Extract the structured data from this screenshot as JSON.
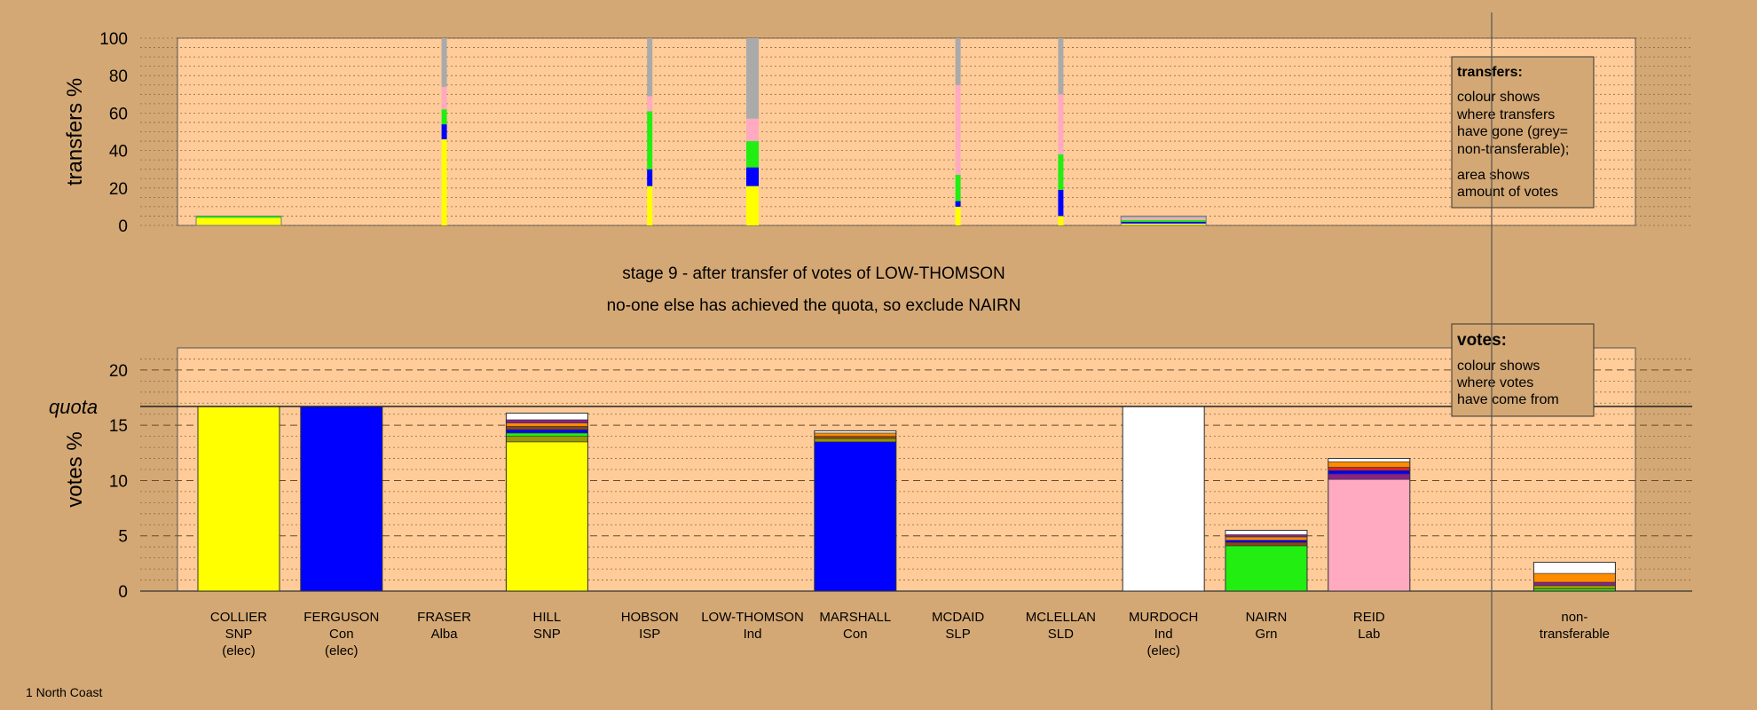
{
  "footer": {
    "region": "1 North Coast"
  },
  "stage_info": {
    "line1": "stage 9 - after transfer of votes of LOW-THOMSON",
    "line2": "no-one else has achieved the quota, so exclude NAIRN"
  },
  "legends": {
    "transfers": {
      "title": "transfers:",
      "lines": [
        "colour shows",
        "where transfers",
        "have gone (grey=",
        "non-transferable);",
        "area shows",
        "amount of votes"
      ]
    },
    "votes": {
      "title": "votes:",
      "lines": [
        "colour shows",
        "where votes",
        "have come from"
      ]
    }
  },
  "colors": {
    "SNP": "#ffff00",
    "Con": "#0000ff",
    "Grn": "#22ee11",
    "Lab": "#ffaac0",
    "Ind": "#ffffff",
    "Orange": "#ff8c00",
    "Purple": "#882288",
    "Brown": "#8b4513",
    "Olive": "#999900",
    "Red": "#dd2222",
    "NonTrans": "#aaaaaa",
    "Background": "#d4a874",
    "PlotFill": "#ffcc99"
  },
  "chart_data": [
    {
      "type": "bar",
      "name": "transfers",
      "ylabel": "transfers %",
      "ylim": [
        0,
        100
      ],
      "yticks": [
        0,
        20,
        40,
        60,
        80,
        100
      ],
      "columns": [
        {
          "candidate": "COLLIER",
          "segments": [
            {
              "color": "SNP",
              "value": 4
            },
            {
              "color": "Grn",
              "value": 1
            }
          ],
          "wide": true
        },
        {
          "candidate": "FRASER",
          "segments": [
            {
              "color": "SNP",
              "value": 46
            },
            {
              "color": "Con",
              "value": 8
            },
            {
              "color": "Grn",
              "value": 8
            },
            {
              "color": "Lab",
              "value": 12
            },
            {
              "color": "NonTrans",
              "value": 26
            }
          ]
        },
        {
          "candidate": "HOBSON",
          "segments": [
            {
              "color": "SNP",
              "value": 21
            },
            {
              "color": "Con",
              "value": 9
            },
            {
              "color": "Grn",
              "value": 31
            },
            {
              "color": "Lab",
              "value": 8
            },
            {
              "color": "NonTrans",
              "value": 31
            }
          ]
        },
        {
          "candidate": "LOW-THOMSON",
          "segments": [
            {
              "color": "SNP",
              "value": 21
            },
            {
              "color": "Con",
              "value": 10
            },
            {
              "color": "Grn",
              "value": 14
            },
            {
              "color": "Lab",
              "value": 12
            },
            {
              "color": "NonTrans",
              "value": 43
            }
          ]
        },
        {
          "candidate": "MCDAID",
          "segments": [
            {
              "color": "SNP",
              "value": 10
            },
            {
              "color": "Con",
              "value": 3
            },
            {
              "color": "Grn",
              "value": 14
            },
            {
              "color": "Lab",
              "value": 48
            },
            {
              "color": "NonTrans",
              "value": 25
            }
          ]
        },
        {
          "candidate": "MCLELLAN",
          "segments": [
            {
              "color": "SNP",
              "value": 5
            },
            {
              "color": "Con",
              "value": 14
            },
            {
              "color": "Grn",
              "value": 19
            },
            {
              "color": "Lab",
              "value": 32
            },
            {
              "color": "NonTrans",
              "value": 30
            }
          ]
        },
        {
          "candidate": "MURDOCH",
          "segments": [
            {
              "color": "SNP",
              "value": 1
            },
            {
              "color": "Con",
              "value": 1
            },
            {
              "color": "Grn",
              "value": 1
            },
            {
              "color": "Lab",
              "value": 1
            },
            {
              "color": "NonTrans",
              "value": 1
            }
          ],
          "wide": true
        }
      ]
    },
    {
      "type": "bar",
      "name": "votes",
      "ylabel": "votes %",
      "ylim": [
        0,
        22
      ],
      "yticks": [
        0,
        5,
        10,
        15,
        20
      ],
      "quota": 16.7,
      "quota_label": "quota",
      "categories": [
        "COLLIER",
        "FERGUSON",
        "FRASER",
        "HILL",
        "HOBSON",
        "LOW-THOMSON",
        "MARSHALL",
        "MCDAID",
        "MCLELLAN",
        "MURDOCH",
        "NAIRN",
        "REID",
        "",
        "non-"
      ],
      "category_labels": [
        {
          "name": "COLLIER",
          "party": "SNP",
          "note": "(elec)"
        },
        {
          "name": "FERGUSON",
          "party": "Con",
          "note": "(elec)"
        },
        {
          "name": "FRASER",
          "party": "Alba",
          "note": ""
        },
        {
          "name": "HILL",
          "party": "SNP",
          "note": ""
        },
        {
          "name": "HOBSON",
          "party": "ISP",
          "note": ""
        },
        {
          "name": "LOW-THOMSON",
          "party": "Ind",
          "note": ""
        },
        {
          "name": "MARSHALL",
          "party": "Con",
          "note": ""
        },
        {
          "name": "MCDAID",
          "party": "SLP",
          "note": ""
        },
        {
          "name": "MCLELLAN",
          "party": "SLD",
          "note": ""
        },
        {
          "name": "MURDOCH",
          "party": "Ind",
          "note": "(elec)"
        },
        {
          "name": "NAIRN",
          "party": "Grn",
          "note": ""
        },
        {
          "name": "REID",
          "party": "Lab",
          "note": ""
        },
        {
          "name": "",
          "party": "",
          "note": ""
        },
        {
          "name": "non-",
          "party": "transferable",
          "note": ""
        }
      ],
      "stacks": [
        [
          {
            "color": "SNP",
            "value": 16.7
          }
        ],
        [
          {
            "color": "Con",
            "value": 16.7
          }
        ],
        [],
        [
          {
            "color": "SNP",
            "value": 13.5
          },
          {
            "color": "Olive",
            "value": 0.5
          },
          {
            "color": "Grn",
            "value": 0.3
          },
          {
            "color": "Con",
            "value": 0.3
          },
          {
            "color": "Brown",
            "value": 0.3
          },
          {
            "color": "Orange",
            "value": 0.3
          },
          {
            "color": "Purple",
            "value": 0.3
          },
          {
            "color": "Ind",
            "value": 0.6
          }
        ],
        [],
        [],
        [
          {
            "color": "Con",
            "value": 13.5
          },
          {
            "color": "Olive",
            "value": 0.3
          },
          {
            "color": "Brown",
            "value": 0.2
          },
          {
            "color": "Orange",
            "value": 0.3
          },
          {
            "color": "Ind",
            "value": 0.2
          }
        ],
        [],
        [],
        [
          {
            "color": "Ind",
            "value": 16.7
          }
        ],
        [
          {
            "color": "Grn",
            "value": 4.1
          },
          {
            "color": "Brown",
            "value": 0.3
          },
          {
            "color": "Con",
            "value": 0.2
          },
          {
            "color": "Orange",
            "value": 0.3
          },
          {
            "color": "Purple",
            "value": 0.2
          },
          {
            "color": "Ind",
            "value": 0.4
          }
        ],
        [
          {
            "color": "Lab",
            "value": 10.1
          },
          {
            "color": "Purple",
            "value": 0.5
          },
          {
            "color": "Con",
            "value": 0.3
          },
          {
            "color": "Red",
            "value": 0.3
          },
          {
            "color": "Orange",
            "value": 0.5
          },
          {
            "color": "Ind",
            "value": 0.3
          }
        ],
        [],
        [
          {
            "color": "Grn",
            "value": 0.2
          },
          {
            "color": "Olive",
            "value": 0.3
          },
          {
            "color": "Purple",
            "value": 0.3
          },
          {
            "color": "Orange",
            "value": 0.8
          },
          {
            "color": "Ind",
            "value": 1.0
          }
        ]
      ]
    }
  ]
}
